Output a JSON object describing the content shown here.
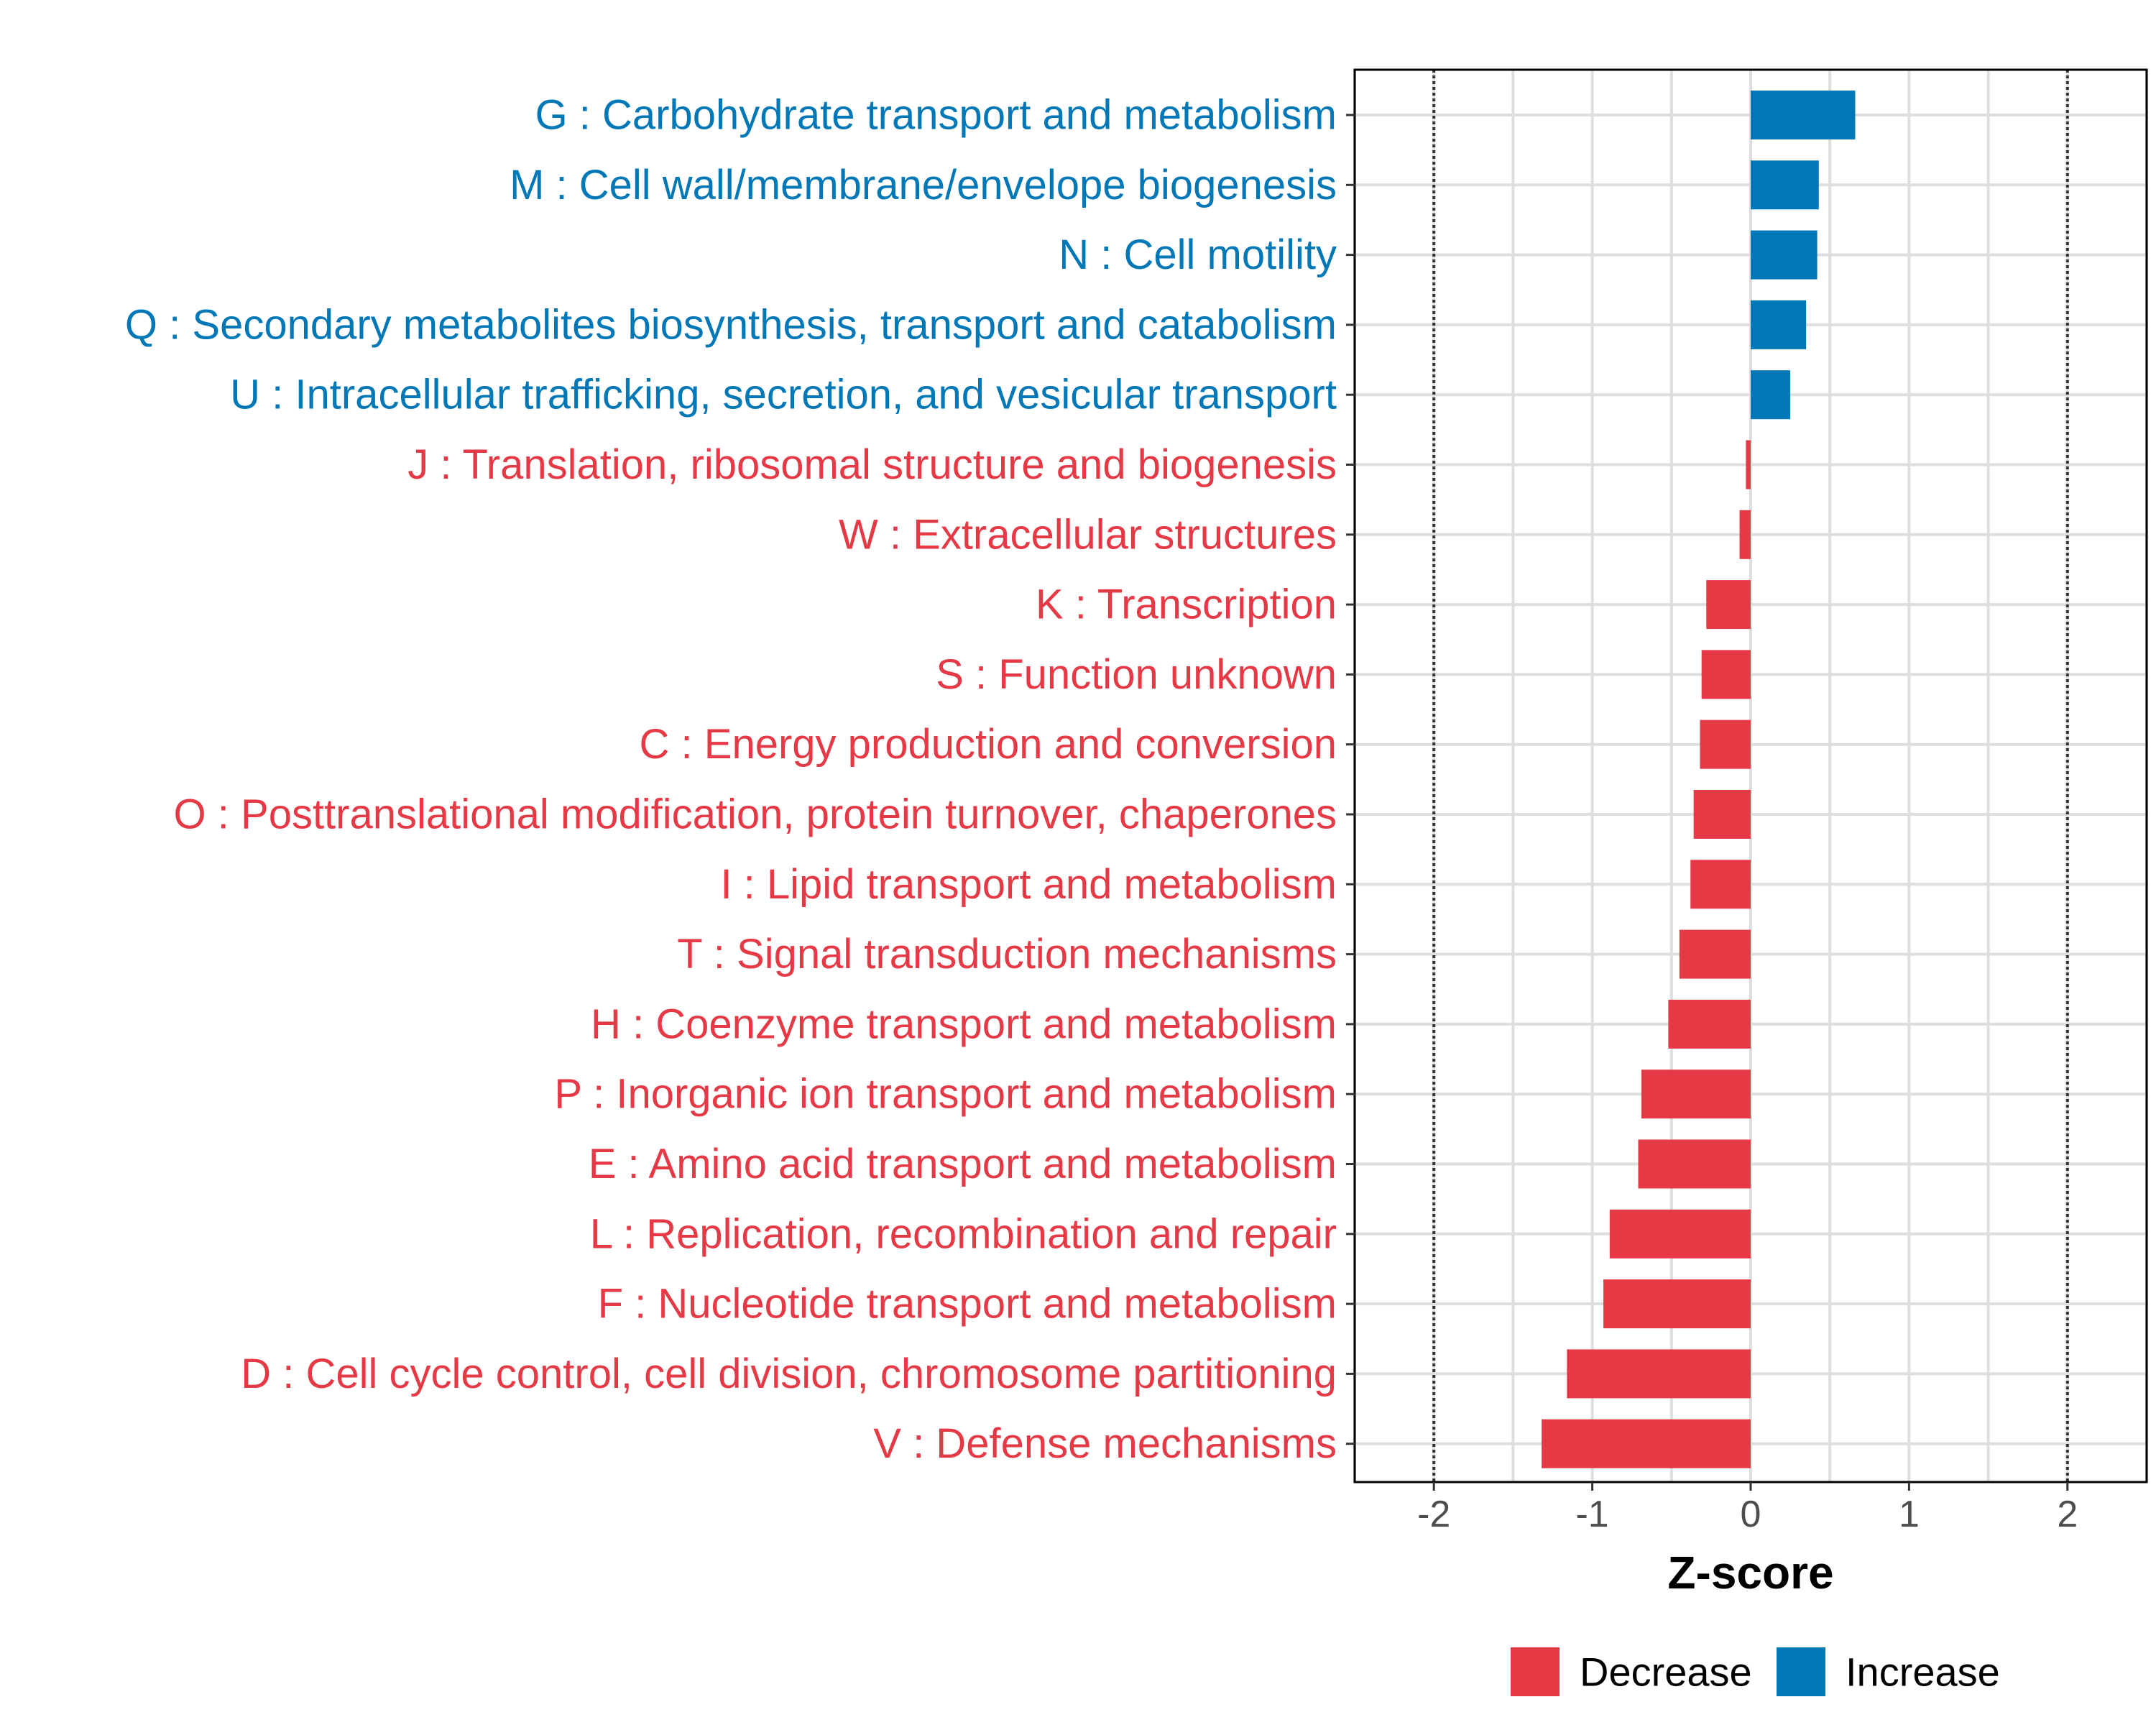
{
  "chart_data": {
    "type": "bar",
    "orientation": "horizontal",
    "xlabel": "Z-score",
    "xlim": [
      -2.5,
      2.5
    ],
    "xticks": [
      -2,
      -1,
      0,
      1,
      2
    ],
    "xtick_labels": [
      "-2",
      "-1",
      "0",
      "1",
      "2"
    ],
    "reference_lines": [
      -2,
      2
    ],
    "grid": true,
    "legend_position": "bottom",
    "legend": [
      {
        "key": "decrease",
        "label": "Decrease",
        "color": "#e63946"
      },
      {
        "key": "increase",
        "label": "Increase",
        "color": "#0077b6"
      }
    ],
    "bars": [
      {
        "label": "G : Carbohydrate transport and metabolism",
        "value": 0.66,
        "group": "increase"
      },
      {
        "label": "M : Cell wall/membrane/envelope biogenesis",
        "value": 0.43,
        "group": "increase"
      },
      {
        "label": "N : Cell motility",
        "value": 0.42,
        "group": "increase"
      },
      {
        "label": "Q : Secondary metabolites biosynthesis, transport and catabolism",
        "value": 0.35,
        "group": "increase"
      },
      {
        "label": "U : Intracellular trafficking, secretion, and vesicular transport",
        "value": 0.25,
        "group": "increase"
      },
      {
        "label": "J : Translation, ribosomal structure and biogenesis",
        "value": -0.03,
        "group": "decrease"
      },
      {
        "label": "W : Extracellular structures",
        "value": -0.07,
        "group": "decrease"
      },
      {
        "label": "K : Transcription",
        "value": -0.28,
        "group": "decrease"
      },
      {
        "label": "S : Function unknown",
        "value": -0.31,
        "group": "decrease"
      },
      {
        "label": "C : Energy production and conversion",
        "value": -0.32,
        "group": "decrease"
      },
      {
        "label": "O : Posttranslational modification, protein turnover, chaperones",
        "value": -0.36,
        "group": "decrease"
      },
      {
        "label": "I : Lipid transport and metabolism",
        "value": -0.38,
        "group": "decrease"
      },
      {
        "label": "T : Signal transduction mechanisms",
        "value": -0.45,
        "group": "decrease"
      },
      {
        "label": "H : Coenzyme transport and metabolism",
        "value": -0.52,
        "group": "decrease"
      },
      {
        "label": "P : Inorganic ion transport and metabolism",
        "value": -0.69,
        "group": "decrease"
      },
      {
        "label": "E : Amino acid transport and metabolism",
        "value": -0.71,
        "group": "decrease"
      },
      {
        "label": "L : Replication, recombination and repair",
        "value": -0.89,
        "group": "decrease"
      },
      {
        "label": "F : Nucleotide transport and metabolism",
        "value": -0.93,
        "group": "decrease"
      },
      {
        "label": "D : Cell cycle control, cell division, chromosome partitioning",
        "value": -1.16,
        "group": "decrease"
      },
      {
        "label": "V : Defense mechanisms",
        "value": -1.32,
        "group": "decrease"
      }
    ]
  }
}
